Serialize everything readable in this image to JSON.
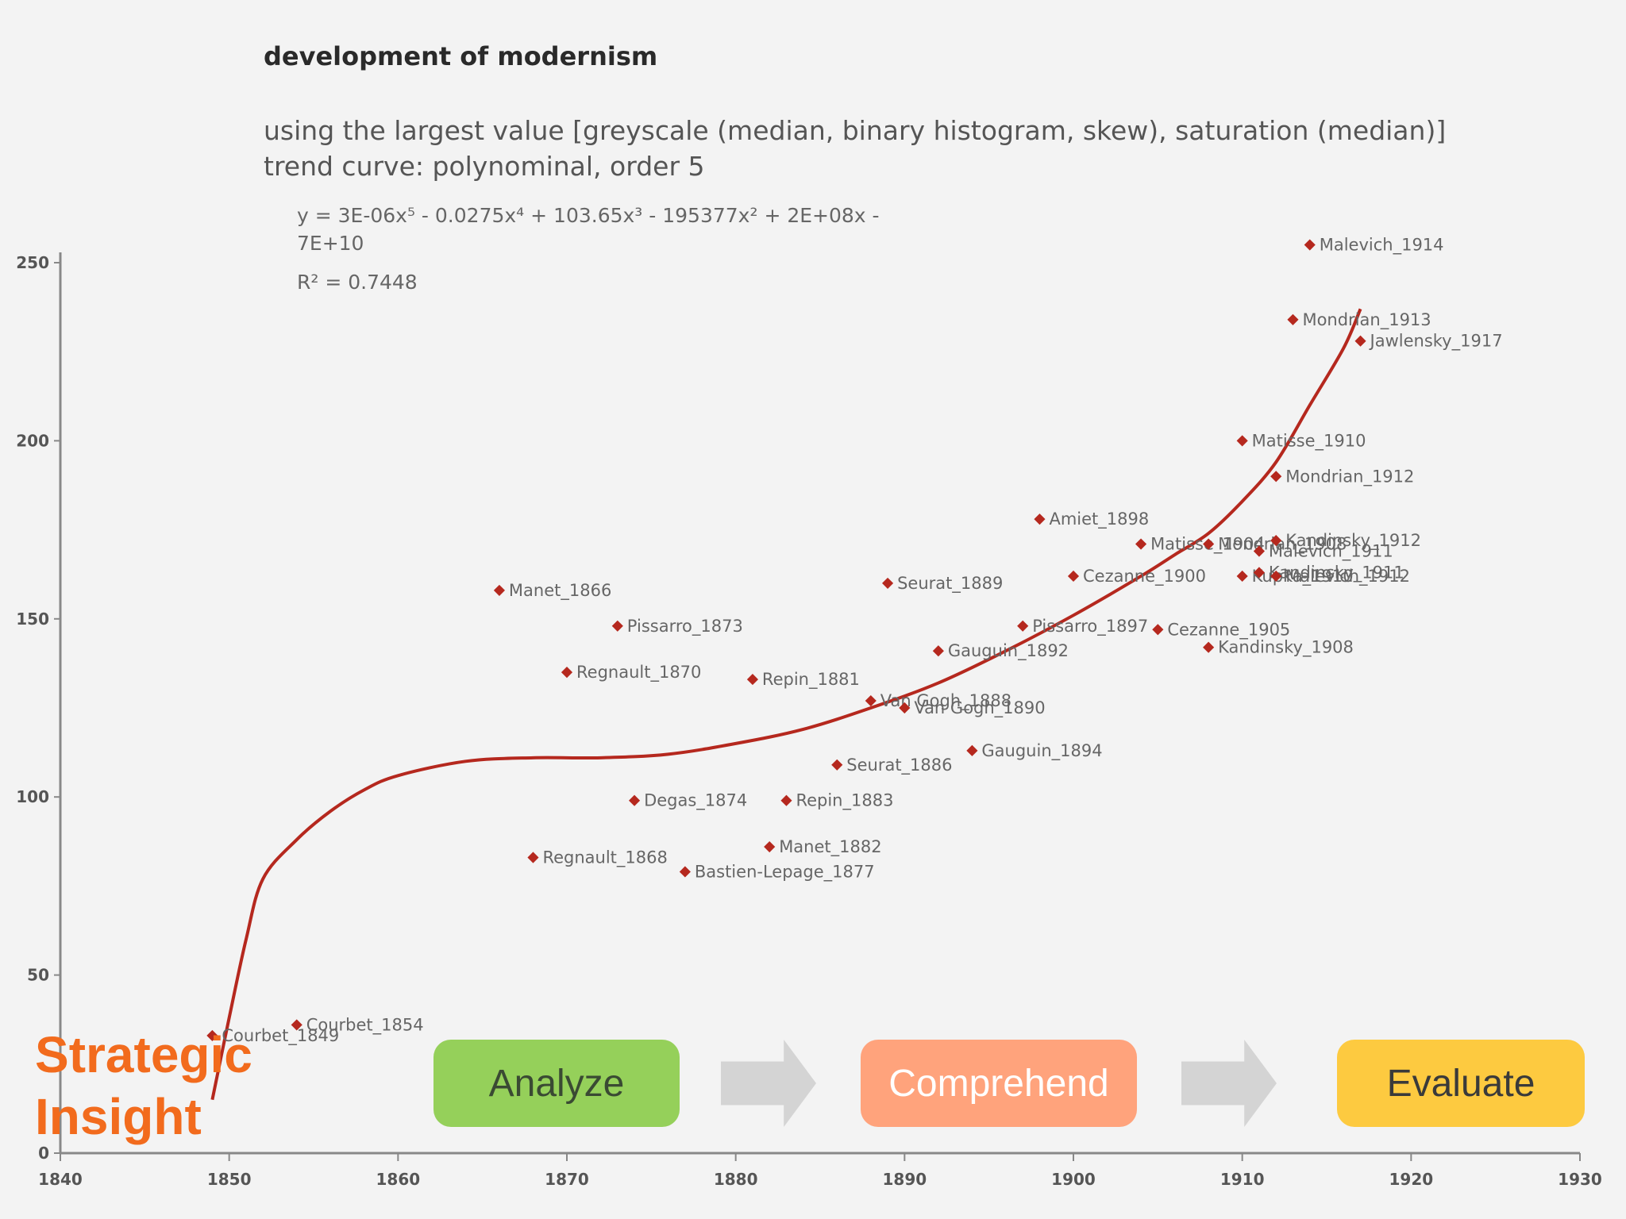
{
  "chart_data": {
    "type": "scatter",
    "title": "development of modernism",
    "subtitle_lines": [
      "using the largest value [greyscale (median, binary histogram, skew), saturation (median)]",
      "trend curve: polynominal, order 5"
    ],
    "equation_line1": "y = 3E-06x⁵ - 0.0275x⁴ + 103.65x³ - 195377x² + 2E+08x -",
    "equation_line2": "7E+10",
    "r_squared": "R² = 0.7448",
    "xlim": [
      1840,
      1930
    ],
    "ylim": [
      0,
      250
    ],
    "x_ticks": [
      "1840",
      "1850",
      "1860",
      "1870",
      "1880",
      "1890",
      "1900",
      "1910",
      "1920",
      "1930"
    ],
    "y_ticks": [
      "0",
      "50",
      "100",
      "150",
      "200",
      "250"
    ],
    "marker_color": "#b5281e",
    "trend_color": "#b5281e",
    "points": [
      {
        "label": "Courbet_1849",
        "x": 1849,
        "y": 33
      },
      {
        "label": "Courbet_1854",
        "x": 1854,
        "y": 36
      },
      {
        "label": "Manet_1866",
        "x": 1866,
        "y": 158
      },
      {
        "label": "Regnault_1868",
        "x": 1868,
        "y": 83
      },
      {
        "label": "Regnault_1870",
        "x": 1870,
        "y": 135
      },
      {
        "label": "Pissarro_1873",
        "x": 1873,
        "y": 148
      },
      {
        "label": "Degas_1874",
        "x": 1874,
        "y": 99
      },
      {
        "label": "Bastien-Lepage_1877",
        "x": 1877,
        "y": 79
      },
      {
        "label": "Repin_1881",
        "x": 1881,
        "y": 133
      },
      {
        "label": "Manet_1882",
        "x": 1882,
        "y": 86
      },
      {
        "label": "Repin_1883",
        "x": 1883,
        "y": 99
      },
      {
        "label": "Seurat_1886",
        "x": 1886,
        "y": 109
      },
      {
        "label": "Van Gogh_1888",
        "x": 1888,
        "y": 127
      },
      {
        "label": "Seurat_1889",
        "x": 1889,
        "y": 160
      },
      {
        "label": "Van Gogh_1890",
        "x": 1890,
        "y": 125
      },
      {
        "label": "Gauguin_1892",
        "x": 1892,
        "y": 141
      },
      {
        "label": "Gauguin_1894",
        "x": 1894,
        "y": 113
      },
      {
        "label": "Pissarro_1897",
        "x": 1897,
        "y": 148
      },
      {
        "label": "Amiet_1898",
        "x": 1898,
        "y": 178
      },
      {
        "label": "Cezanne_1900",
        "x": 1900,
        "y": 162
      },
      {
        "label": "Matisse_1904",
        "x": 1904,
        "y": 171
      },
      {
        "label": "Cezanne_1905",
        "x": 1905,
        "y": 147
      },
      {
        "label": "Mondrian_1908",
        "x": 1908,
        "y": 171
      },
      {
        "label": "Kandinsky_1908",
        "x": 1908,
        "y": 142
      },
      {
        "label": "Matisse_1910",
        "x": 1910,
        "y": 200
      },
      {
        "label": "Kupka_1910",
        "x": 1910,
        "y": 162
      },
      {
        "label": "Malevich_1911",
        "x": 1911,
        "y": 169
      },
      {
        "label": "Kandinsky_1911",
        "x": 1911,
        "y": 163
      },
      {
        "label": "Mondrian_1912",
        "x": 1912,
        "y": 190
      },
      {
        "label": "Kandinsky_1912",
        "x": 1912,
        "y": 172
      },
      {
        "label": "Malevich_1912",
        "x": 1912,
        "y": 162
      },
      {
        "label": "Mondrian_1913",
        "x": 1913,
        "y": 234
      },
      {
        "label": "Malevich_1914",
        "x": 1914,
        "y": 255
      },
      {
        "label": "Jawlensky_1917",
        "x": 1917,
        "y": 228
      }
    ],
    "trend_curve": [
      [
        1849,
        15
      ],
      [
        1850,
        38
      ],
      [
        1851,
        60
      ],
      [
        1852,
        77
      ],
      [
        1854,
        88
      ],
      [
        1856,
        96
      ],
      [
        1858,
        102
      ],
      [
        1860,
        106
      ],
      [
        1864,
        110
      ],
      [
        1868,
        111
      ],
      [
        1872,
        111
      ],
      [
        1876,
        112
      ],
      [
        1880,
        115
      ],
      [
        1884,
        119
      ],
      [
        1888,
        125
      ],
      [
        1892,
        132
      ],
      [
        1896,
        141
      ],
      [
        1900,
        151
      ],
      [
        1904,
        162
      ],
      [
        1906,
        168
      ],
      [
        1908,
        174
      ],
      [
        1910,
        183
      ],
      [
        1912,
        194
      ],
      [
        1914,
        210
      ],
      [
        1916,
        226
      ],
      [
        1917,
        237
      ]
    ]
  },
  "overlay": {
    "title_line1": "Strategic",
    "title_line2": "Insight",
    "steps": [
      {
        "label": "Analyze",
        "color": "#95d05a",
        "text_color": "#3a4a33"
      },
      {
        "label": "Comprehend",
        "color": "#ffa37c",
        "text_color": "#ffffff"
      },
      {
        "label": "Evaluate",
        "color": "#fdca40",
        "text_color": "#3a3a3a"
      }
    ]
  }
}
